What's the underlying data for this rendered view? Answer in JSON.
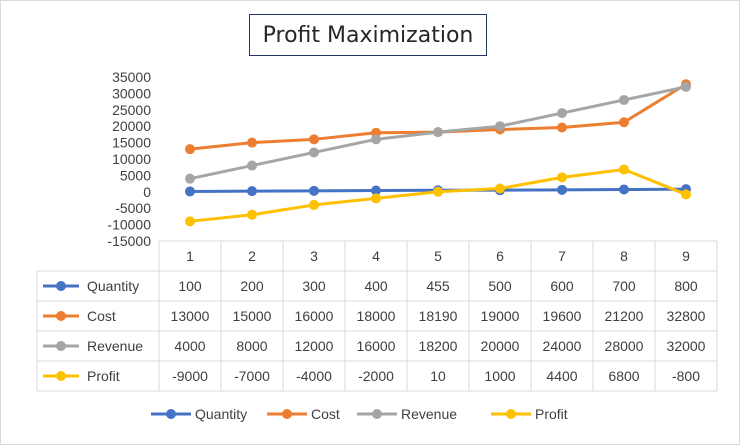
{
  "chart_data": {
    "type": "line",
    "title": "Profit Maximization",
    "categories": [
      "1",
      "2",
      "3",
      "4",
      "5",
      "6",
      "7",
      "8",
      "9"
    ],
    "ylim": [
      -15000,
      35000
    ],
    "yticks": [
      35000,
      30000,
      25000,
      20000,
      15000,
      10000,
      5000,
      0,
      -5000,
      -10000,
      -15000
    ],
    "grid": false,
    "legend": "bottom",
    "data_table": true,
    "series": [
      {
        "name": "Quantity",
        "color": "#4472c4",
        "values": [
          100,
          200,
          300,
          400,
          455,
          500,
          600,
          700,
          800
        ]
      },
      {
        "name": "Cost",
        "color": "#ed7d31",
        "values": [
          13000,
          15000,
          16000,
          18000,
          18190,
          19000,
          19600,
          21200,
          32800
        ]
      },
      {
        "name": "Revenue",
        "color": "#a5a5a5",
        "values": [
          4000,
          8000,
          12000,
          16000,
          18200,
          20000,
          24000,
          28000,
          32000
        ]
      },
      {
        "name": "Profit",
        "color": "#ffc000",
        "values": [
          -9000,
          -7000,
          -4000,
          -2000,
          10,
          1000,
          4400,
          6800,
          -800
        ]
      }
    ]
  }
}
